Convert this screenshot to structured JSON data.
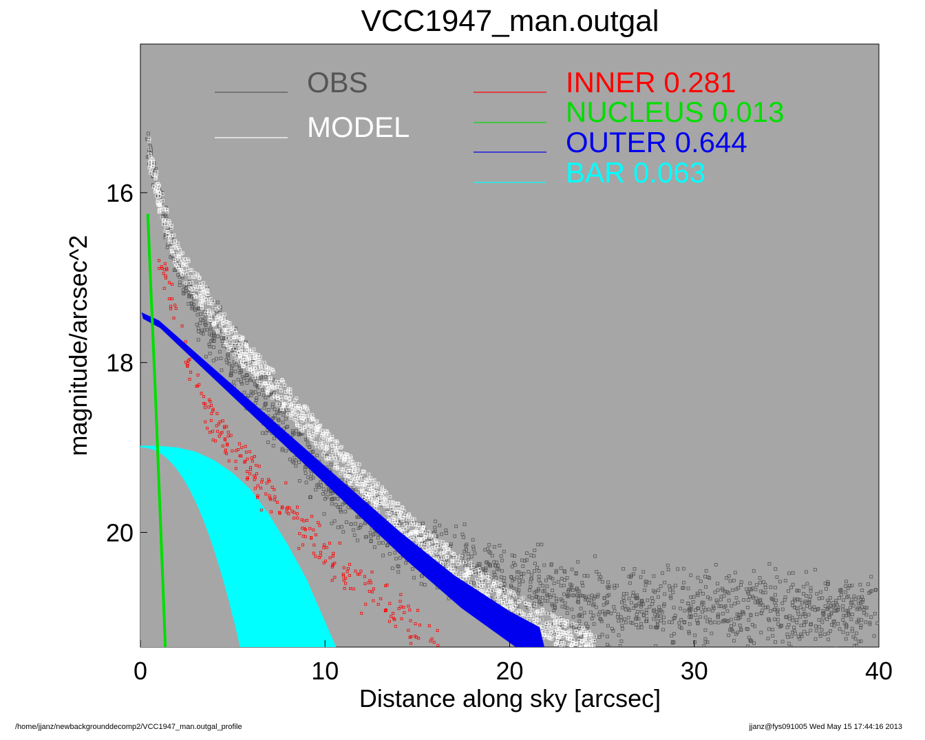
{
  "chart_data": {
    "type": "scatter",
    "title": "VCC1947_man.outgal",
    "xlabel": "Distance along sky [arcsec]",
    "ylabel": "magnitude/arcsec^2",
    "xlim": [
      0,
      40
    ],
    "ylim": [
      21.35,
      14.25
    ],
    "y_inverted": true,
    "xticks": [
      0,
      10,
      20,
      30,
      40
    ],
    "yticks": [
      16,
      18,
      20
    ],
    "background": "#a6a6a6",
    "grid": false,
    "legend_placement": "top",
    "legend": [
      {
        "name": "OBS",
        "value": "",
        "color": "#555555"
      },
      {
        "name": "MODEL",
        "value": "",
        "color": "#ffffff"
      },
      {
        "name": "INNER",
        "value": "0.281",
        "color": "#ff0000"
      },
      {
        "name": "NUCLEUS",
        "value": "0.013",
        "color": "#00dd00"
      },
      {
        "name": "OUTER",
        "value": "0.644",
        "color": "#0000ee"
      },
      {
        "name": "BAR",
        "value": "0.063",
        "color": "#00ffff"
      }
    ],
    "series": [
      {
        "name": "OBS",
        "color": "#555555",
        "marker": "open-square",
        "x": [
          0.4,
          1.0,
          2.0,
          3.0,
          5.0,
          8.0,
          10.0,
          13.0,
          16.0,
          20.0,
          24.0,
          30.0,
          35.0,
          40.0
        ],
        "y": [
          15.45,
          16.05,
          16.9,
          17.35,
          17.95,
          18.85,
          19.4,
          19.95,
          20.25,
          20.6,
          20.85,
          20.9,
          20.95,
          20.9
        ]
      },
      {
        "name": "MODEL",
        "color": "#ffffff",
        "marker": "open-square",
        "x": [
          0.4,
          1.0,
          2.0,
          3.0,
          5.0,
          8.0,
          10.0,
          12.0,
          15.0,
          18.0,
          20.0,
          22.0,
          24.0,
          24.7
        ],
        "y": [
          15.45,
          16.05,
          16.75,
          17.1,
          17.75,
          18.45,
          18.95,
          19.4,
          20.05,
          20.55,
          20.85,
          21.1,
          21.3,
          21.35
        ]
      },
      {
        "name": "INNER",
        "color": "#ff0000",
        "marker": "open-square",
        "x": [
          1.0,
          1.8,
          2.5,
          4.0,
          5.5,
          7.0,
          9.0,
          11.0,
          13.0,
          15.0,
          16.0
        ],
        "y": [
          16.7,
          17.3,
          17.9,
          18.75,
          19.15,
          19.55,
          19.95,
          20.45,
          20.8,
          21.15,
          21.3
        ]
      },
      {
        "name": "NUCLEUS",
        "color": "#00dd00",
        "marker": "line",
        "x": [
          0.4,
          0.6,
          0.8,
          1.0,
          1.2,
          1.35
        ],
        "y": [
          16.25,
          17.3,
          18.3,
          19.4,
          20.5,
          21.35
        ]
      },
      {
        "name": "OUTER",
        "color": "#0000ee",
        "marker": "band",
        "x": [
          0.1,
          1.0,
          3.0,
          5.0,
          8.0,
          11.0,
          14.0,
          17.0,
          20.0,
          21.6
        ],
        "y": [
          17.45,
          17.55,
          17.95,
          18.35,
          18.95,
          19.55,
          20.15,
          20.7,
          21.15,
          21.35
        ]
      },
      {
        "name": "BAR",
        "color": "#00ffff",
        "marker": "band",
        "x": [
          0.0,
          1.0,
          2.0,
          3.0,
          4.0,
          5.0,
          6.0,
          7.0,
          8.0,
          9.0,
          10.0,
          10.6
        ],
        "y": [
          18.98,
          18.98,
          19.0,
          19.05,
          19.15,
          19.3,
          19.5,
          19.8,
          20.15,
          20.55,
          21.05,
          21.35
        ]
      }
    ]
  },
  "footer": {
    "left": "/home/jjanz/newbackgrounddecomp2/VCC1947_man.outgal_profile",
    "right": "jjanz@fys091005  Wed May 15 17:44:16 2013"
  }
}
